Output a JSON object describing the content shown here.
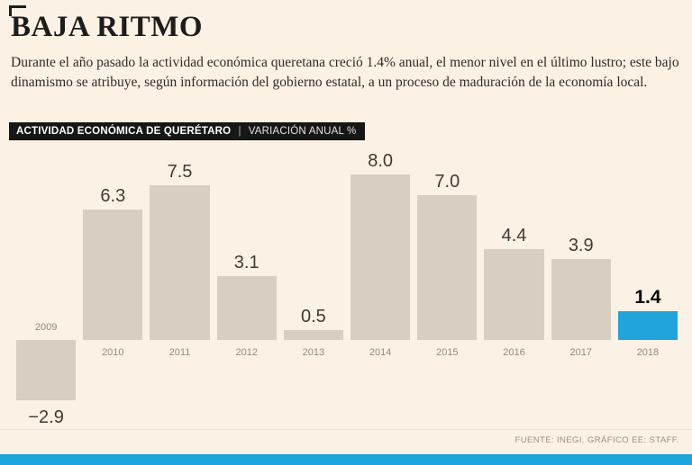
{
  "header": {
    "title": "BAJA RITMO",
    "intro": "Durante el año pasado la actividad económica queretana creció 1.4% anual, el menor nivel en el último lustro; este bajo dinamismo se atribuye, según información del gobierno estatal, a un proceso de maduración de la economía local."
  },
  "chart_header": {
    "title": "ACTIVIDAD ECONÓMICA DE QUERÉTARO",
    "separator": "|",
    "subtitle": "VARIACIÓN ANUAL %"
  },
  "chart_data": {
    "type": "bar",
    "title": "ACTIVIDAD ECONÓMICA DE QUERÉTARO",
    "ylabel": "VARIACIÓN ANUAL %",
    "categories": [
      "2009",
      "2010",
      "2011",
      "2012",
      "2013",
      "2014",
      "2015",
      "2016",
      "2017",
      "2018"
    ],
    "values": [
      -2.9,
      6.3,
      7.5,
      3.1,
      0.5,
      8.0,
      7.0,
      4.4,
      3.9,
      1.4
    ],
    "highlight_index": 9,
    "bar_color": "#d7cfc2",
    "highlight_color": "#21a3db",
    "ylim": [
      -3.5,
      9
    ],
    "grid": false,
    "legend": "none"
  },
  "footer": {
    "source": "FUENTE: INEGI. GRÁFICO EE: STAFF."
  },
  "colors": {
    "background": "#fcf1e5",
    "header_band": "#161616",
    "accent_blue": "#21a3db"
  }
}
